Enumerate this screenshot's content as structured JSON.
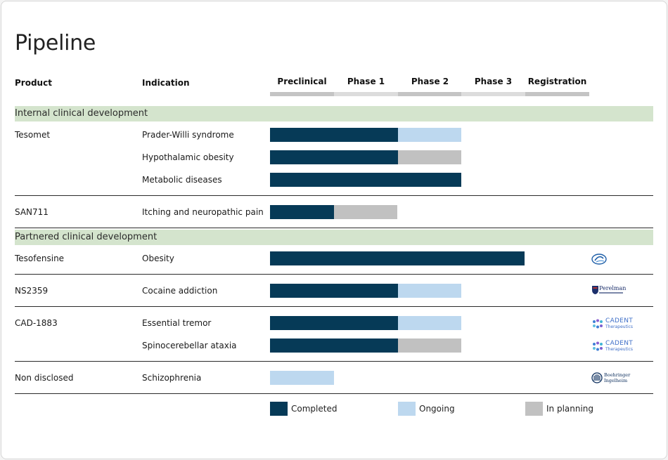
{
  "title": "Pipeline",
  "columns": {
    "product": "Product",
    "indication": "Indication",
    "phases": [
      "Preclinical",
      "Phase 1",
      "Phase 2",
      "Phase 3",
      "Registration"
    ]
  },
  "sections": [
    {
      "label": "Internal clinical development",
      "products": [
        {
          "name": "Tesomet",
          "rows": [
            {
              "indication": "Prader-Willi syndrome",
              "completed": 2,
              "ongoing": 1,
              "planning": 0
            },
            {
              "indication": "Hypothalamic obesity",
              "completed": 2,
              "ongoing": 0,
              "planning": 1
            },
            {
              "indication": "Metabolic diseases",
              "completed": 3,
              "ongoing": 0,
              "planning": 0
            }
          ]
        },
        {
          "name": "SAN711",
          "rows": [
            {
              "indication": "Itching and neuropathic pain",
              "completed": 1,
              "ongoing": 0,
              "planning": 1
            }
          ]
        }
      ]
    },
    {
      "label": "Partnered clinical development",
      "products": [
        {
          "name": "Tesofensine",
          "rows": [
            {
              "indication": "Obesity",
              "completed": 4,
              "ongoing": 0,
              "planning": 0,
              "partner_logo": "medix-logo"
            }
          ]
        },
        {
          "name": "NS2359",
          "rows": [
            {
              "indication": "Cocaine addiction",
              "completed": 2,
              "ongoing": 1,
              "planning": 0,
              "partner_logo": "perelman-logo"
            }
          ]
        },
        {
          "name": "CAD-1883",
          "rows": [
            {
              "indication": "Essential tremor",
              "completed": 2,
              "ongoing": 1,
              "planning": 0,
              "partner_logo": "cadent-logo"
            },
            {
              "indication": "Spinocerebellar ataxia",
              "completed": 2,
              "ongoing": 0,
              "planning": 1,
              "partner_logo": "cadent-logo"
            }
          ]
        },
        {
          "name": "Non disclosed",
          "rows": [
            {
              "indication": "Schizophrenia",
              "completed": 0,
              "ongoing": 1,
              "planning": 0,
              "partner_logo": "boehringer-logo"
            }
          ]
        }
      ]
    }
  ],
  "legend": {
    "completed": "Completed",
    "ongoing": "Ongoing",
    "planning": "In planning"
  },
  "logos": {
    "perelman": "Perelman",
    "cadent_1": "CADENT",
    "cadent_2": "Therapeutics",
    "boehringer_1": "Boehringer",
    "boehringer_2": "Ingelheim"
  },
  "colors": {
    "completed": "#063a57",
    "ongoing": "#bdd8ef",
    "planning": "#c1c1c1",
    "section_bg": "#d4e4cd"
  }
}
